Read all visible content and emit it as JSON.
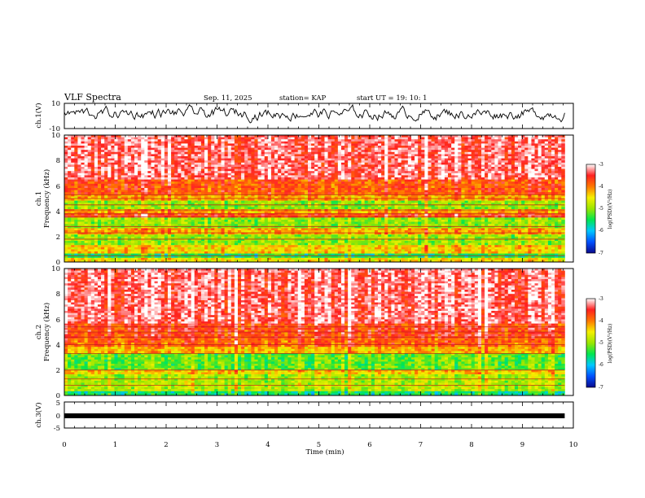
{
  "header": {
    "title": "VLF Spectra",
    "date": "Sep. 11, 2025",
    "station": "station= KAP",
    "start_ut": "start  UT =   19: 10: 1"
  },
  "colors": {
    "background": "#ffffff",
    "axes": "#000000",
    "trace": "#000000",
    "colormap": [
      "#0a0a8c",
      "#0050ff",
      "#00c8ff",
      "#00e650",
      "#9ae600",
      "#f5f000",
      "#ff7800",
      "#ff2020",
      "#ffffff"
    ]
  },
  "chart_data": [
    {
      "type": "line",
      "name": "ch1-waveform",
      "ylabel": "ch.1(V)",
      "xlim": [
        0,
        10
      ],
      "ylim": [
        -10,
        10
      ],
      "data_extent_min": [
        0,
        9.83
      ],
      "yticks": [
        "10",
        "-10"
      ],
      "series": [
        {
          "name": "ch.1",
          "approx_center": 2,
          "approx_range": [
            -6,
            9
          ]
        }
      ]
    },
    {
      "type": "heatmap",
      "name": "ch1-spectrogram",
      "ylabel": "Frequency (kHz)",
      "ylabel_channel": "ch.1",
      "xlim": [
        0,
        10
      ],
      "ylim": [
        0,
        10
      ],
      "yticks": [
        "0",
        "2",
        "4",
        "6",
        "8",
        "10"
      ],
      "data_extent_min": [
        0,
        9.83
      ],
      "colorbar": {
        "label": "log(PSD)(V²/Hz)",
        "range": [
          -7,
          -3
        ],
        "ticks": [
          "-3",
          "-4",
          "-5",
          "-6",
          "-7"
        ]
      },
      "bands_khz": [
        {
          "from": 0.0,
          "to": 0.3,
          "level": -4.5
        },
        {
          "from": 0.3,
          "to": 0.7,
          "level": -5.5
        },
        {
          "from": 0.7,
          "to": 1.3,
          "level": -4.4
        },
        {
          "from": 1.3,
          "to": 2.2,
          "level": -5.0
        },
        {
          "from": 2.2,
          "to": 2.6,
          "level": -4.2
        },
        {
          "from": 2.6,
          "to": 3.5,
          "level": -5.0
        },
        {
          "from": 3.5,
          "to": 3.9,
          "level": -3.7
        },
        {
          "from": 3.9,
          "to": 4.2,
          "level": -4.2
        },
        {
          "from": 4.2,
          "to": 4.9,
          "level": -5.0
        },
        {
          "from": 4.9,
          "to": 5.4,
          "level": -4.2
        },
        {
          "from": 5.4,
          "to": 6.5,
          "level": -3.8
        },
        {
          "from": 6.5,
          "to": 10.0,
          "level": -3.35
        }
      ],
      "lines_khz": [
        0.5,
        1.8,
        2.3,
        2.8,
        3.55,
        3.8,
        4.1,
        4.5,
        5.0,
        5.3
      ]
    },
    {
      "type": "heatmap",
      "name": "ch2-spectrogram",
      "ylabel": "Frequency (kHz)",
      "ylabel_channel": "ch.2",
      "xlim": [
        0,
        10
      ],
      "ylim": [
        0,
        10
      ],
      "yticks": [
        "0",
        "2",
        "4",
        "6",
        "8",
        "10"
      ],
      "data_extent_min": [
        0,
        9.83
      ],
      "colorbar": {
        "label": "log(PSD)(V²/Hz)",
        "range": [
          -7,
          -3
        ],
        "ticks": [
          "-3",
          "-4",
          "-5",
          "-6",
          "-7"
        ]
      },
      "bands_khz": [
        {
          "from": 0.0,
          "to": 0.4,
          "level": -5.6
        },
        {
          "from": 0.4,
          "to": 1.6,
          "level": -4.9
        },
        {
          "from": 1.6,
          "to": 2.0,
          "level": -4.4
        },
        {
          "from": 2.0,
          "to": 3.3,
          "level": -5.2
        },
        {
          "from": 3.3,
          "to": 3.8,
          "level": -4.3
        },
        {
          "from": 3.8,
          "to": 4.5,
          "level": -3.9
        },
        {
          "from": 4.5,
          "to": 5.6,
          "level": -3.7
        },
        {
          "from": 5.6,
          "to": 10.0,
          "level": -3.35
        }
      ],
      "lines_khz": [
        0.8,
        1.3,
        2.0,
        3.3,
        4.0,
        4.6,
        5.0,
        5.4
      ]
    },
    {
      "type": "line",
      "name": "ch3-waveform",
      "ylabel": "ch.3(V)",
      "xlabel": "Time (min)",
      "xlim": [
        0,
        10
      ],
      "ylim": [
        -5,
        5
      ],
      "data_extent_min": [
        0,
        9.83
      ],
      "yticks": [
        "5",
        "0",
        "-5"
      ],
      "xticks": [
        "0",
        "1",
        "2",
        "3",
        "4",
        "5",
        "6",
        "7",
        "8",
        "9",
        "10"
      ],
      "series": [
        {
          "name": "ch.3",
          "approx_center": 0,
          "approx_range": [
            -0.4,
            0.4
          ]
        }
      ]
    }
  ]
}
